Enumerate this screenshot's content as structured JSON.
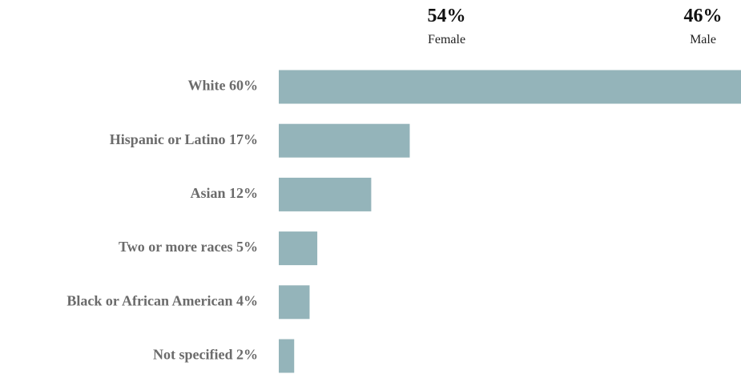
{
  "summary": {
    "female": {
      "percent": "54%",
      "label": "Female"
    },
    "male": {
      "percent": "46%",
      "label": "Male"
    }
  },
  "colors": {
    "bar": "#94b4ba",
    "label": "#6b6b6b"
  },
  "chart_data": {
    "type": "bar",
    "orientation": "horizontal",
    "categories": [
      "White",
      "Hispanic or Latino",
      "Asian",
      "Two or more races",
      "Black or African American",
      "Not specified"
    ],
    "labels": [
      "White 60%",
      "Hispanic or Latino 17%",
      "Asian 12%",
      "Two or more races 5%",
      "Black or African American 4%",
      "Not specified 2%"
    ],
    "values": [
      60,
      17,
      12,
      5,
      4,
      2
    ],
    "xlim": [
      0,
      60
    ],
    "grid": false,
    "legend": "none"
  }
}
